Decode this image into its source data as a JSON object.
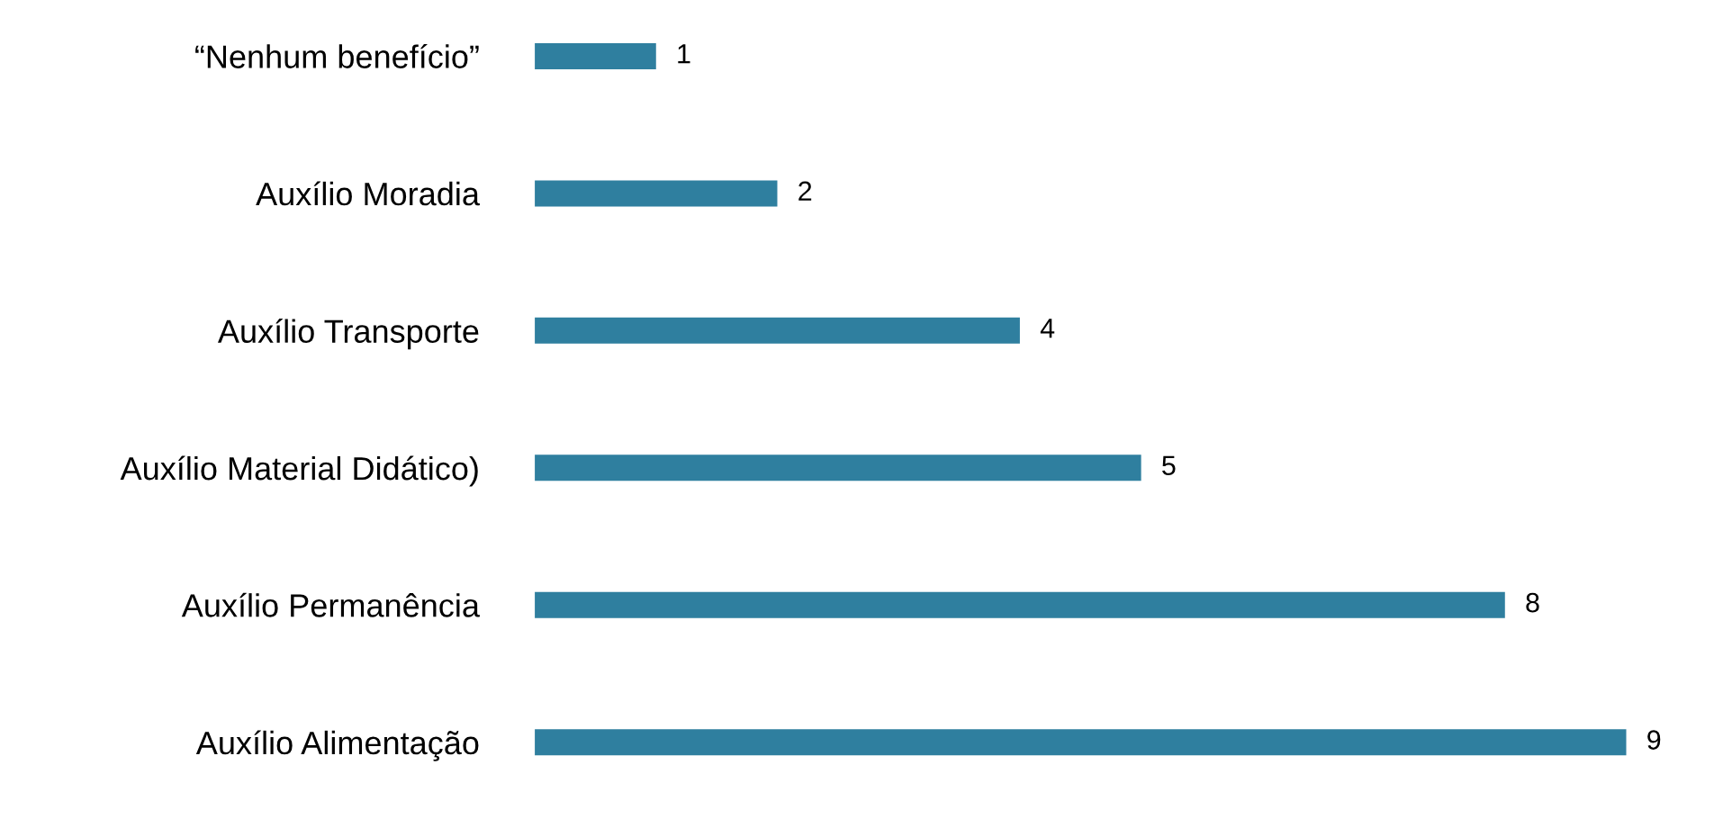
{
  "chart_data": {
    "type": "bar",
    "orientation": "horizontal",
    "categories": [
      "“Nenhum benefício”",
      "Auxílio Moradia",
      "Auxílio Transporte",
      "Auxílio Material Didático)",
      "Auxílio Permanência",
      "Auxílio Alimentação"
    ],
    "values": [
      1,
      2,
      4,
      5,
      8,
      9
    ],
    "color": "#2f7f9f",
    "data_labels": true,
    "grid": false,
    "legend": false
  }
}
